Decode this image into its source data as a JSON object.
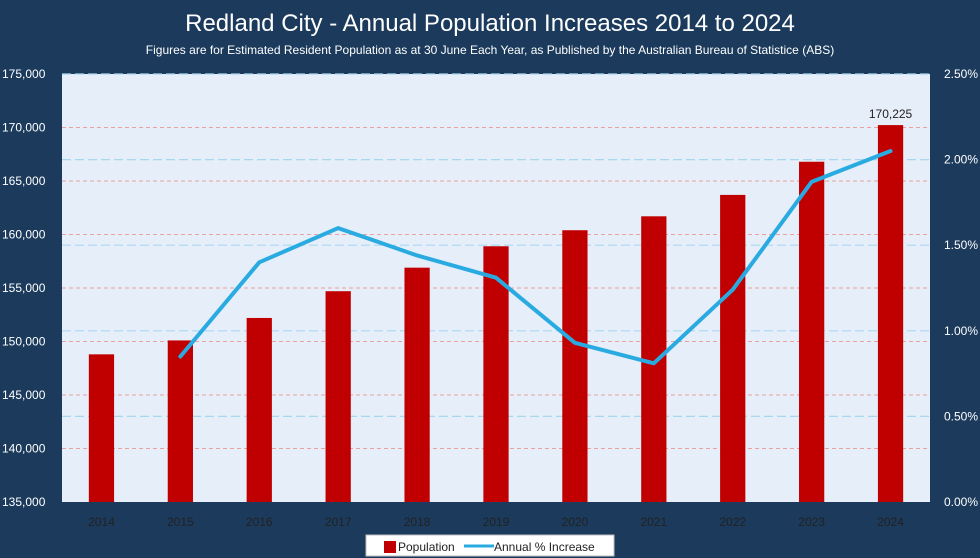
{
  "chart_data": {
    "type": "bar",
    "title": "Redland City  - Annual Population Increases 2014 to 2024",
    "subtitle": "Figures are for Estimated Resident Population as at 30 June Each Year, as Published by the Australian Bureau of Statistice (ABS)",
    "categories": [
      "2014",
      "2015",
      "2016",
      "2017",
      "2018",
      "2019",
      "2020",
      "2021",
      "2022",
      "2023",
      "2024"
    ],
    "series": [
      {
        "name": "Population",
        "kind": "bar",
        "axis": "left",
        "color": "#c00000",
        "values": [
          148800,
          150100,
          152200,
          154700,
          156900,
          158900,
          160400,
          161700,
          163700,
          166800,
          170225
        ]
      },
      {
        "name": "Annual % Increase",
        "kind": "line",
        "axis": "right",
        "color": "#29abe2",
        "values": [
          null,
          0.0085,
          0.014,
          0.016,
          0.0144,
          0.0131,
          0.0093,
          0.0081,
          0.0124,
          0.0187,
          0.0205
        ]
      }
    ],
    "y_left": {
      "range": [
        135000,
        175000
      ],
      "ticks": [
        "135,000",
        "140,000",
        "145,000",
        "150,000",
        "155,000",
        "160,000",
        "165,000",
        "170,000",
        "175,000"
      ]
    },
    "y_right": {
      "range": [
        0,
        0.025
      ],
      "ticks": [
        "0.00%",
        "0.50%",
        "1.00%",
        "1.50%",
        "2.00%",
        "2.50%"
      ]
    },
    "annotations": [
      {
        "category": "2024",
        "text": "170,225"
      }
    ],
    "grid": true,
    "legend": {
      "placement": "bottom",
      "entries": [
        "Population",
        "Annual % Increase"
      ]
    },
    "colors": {
      "background": "#1b3a5c",
      "plot_area": "#e6eef9",
      "grid_left": "#e8a0a0",
      "grid_right": "#a8d8ef"
    }
  }
}
